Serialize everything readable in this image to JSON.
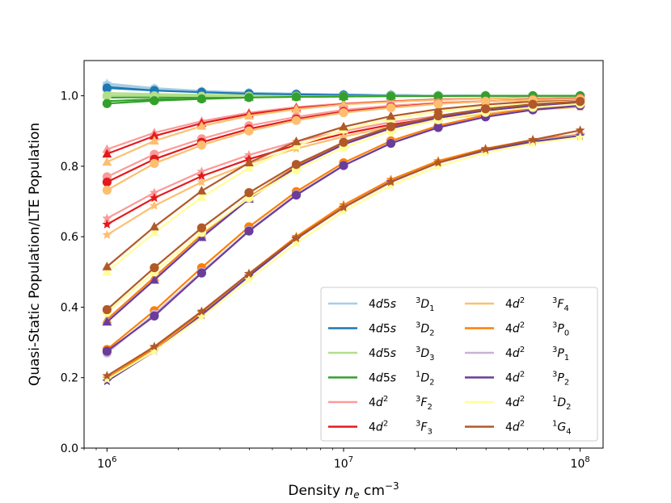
{
  "chart_data": {
    "type": "line",
    "xscale": "log",
    "x": [
      1000000,
      1584893,
      2511886,
      3981072,
      6309573,
      10000000,
      15848932,
      25118864,
      39810717,
      63095734,
      100000000
    ],
    "xlim": [
      800000,
      125000000
    ],
    "ylim": [
      0.0,
      1.1
    ],
    "xticks": [
      {
        "value": 1000000,
        "base": "10",
        "exp": "6"
      },
      {
        "value": 10000000,
        "base": "10",
        "exp": "7"
      },
      {
        "value": 100000000,
        "base": "10",
        "exp": "8"
      }
    ],
    "yticks": [
      {
        "value": 0.0,
        "label": "0.0"
      },
      {
        "value": 0.2,
        "label": "0.2"
      },
      {
        "value": 0.4,
        "label": "0.4"
      },
      {
        "value": 0.6,
        "label": "0.6"
      },
      {
        "value": 0.8,
        "label": "0.8"
      },
      {
        "value": 1.0,
        "label": "1.0"
      }
    ],
    "xlabel": {
      "text": "Density ",
      "var": "n",
      "sub": "e",
      "unit": " cm",
      "sup": "−3"
    },
    "ylabel": "Quasi-Static Population/LTE Population",
    "legend_position": "lower-right",
    "series": [
      {
        "config": "4d5s",
        "term": "D",
        "mult": "3",
        "j": "1",
        "color": "#a6cee3",
        "dots": [
          1.03,
          1.02,
          1.012,
          1.008,
          1.005,
          1.003,
          1.002,
          1.001,
          1.0,
          1.0,
          1.0
        ],
        "stars": [
          1.035,
          1.022,
          1.014,
          1.009,
          1.006,
          1.004,
          1.002,
          1.001,
          1.0,
          1.0,
          1.0
        ],
        "tris": [
          1.03,
          1.02,
          1.012,
          1.008,
          1.005,
          1.003,
          1.002,
          1.001,
          1.0,
          1.0,
          1.0
        ]
      },
      {
        "config": "4d5s",
        "term": "D",
        "mult": "3",
        "j": "2",
        "color": "#1f78b4",
        "dots": [
          1.022,
          1.015,
          1.01,
          1.006,
          1.004,
          1.002,
          1.001,
          1.0,
          1.0,
          1.0,
          1.0
        ],
        "stars": [
          1.028,
          1.018,
          1.012,
          1.008,
          1.005,
          1.003,
          1.002,
          1.001,
          1.0,
          1.0,
          1.0
        ],
        "tris": [
          1.025,
          1.016,
          1.011,
          1.007,
          1.004,
          1.003,
          1.002,
          1.001,
          1.0,
          1.0,
          1.0
        ]
      },
      {
        "config": "4d5s",
        "term": "D",
        "mult": "3",
        "j": "3",
        "color": "#b2df8a",
        "dots": [
          1.0,
          1.0,
          0.999,
          0.999,
          0.999,
          0.999,
          1.0,
          1.0,
          1.0,
          1.0,
          1.0
        ],
        "stars": [
          1.008,
          1.005,
          1.003,
          1.002,
          1.001,
          1.001,
          1.0,
          1.0,
          1.0,
          1.0,
          1.0
        ],
        "tris": [
          1.002,
          1.001,
          1.0,
          1.0,
          1.0,
          1.0,
          1.0,
          1.0,
          1.0,
          1.0,
          1.0
        ]
      },
      {
        "config": "4d5s",
        "term": "D",
        "mult": "1",
        "j": "2",
        "color": "#33a02c",
        "dots": [
          0.978,
          0.986,
          0.991,
          0.995,
          0.997,
          0.998,
          0.999,
          0.999,
          1.0,
          1.0,
          1.0
        ],
        "stars": [
          0.995,
          0.996,
          0.997,
          0.998,
          0.999,
          0.999,
          1.0,
          1.0,
          1.0,
          1.0,
          1.0
        ],
        "tris": [
          0.985,
          0.99,
          0.993,
          0.996,
          0.997,
          0.998,
          0.999,
          1.0,
          1.0,
          1.0,
          1.0
        ]
      },
      {
        "config": "4d",
        "csup": "2",
        "term": "F",
        "mult": "3",
        "j": "2",
        "color": "#fb9a99",
        "dots": [
          0.77,
          0.834,
          0.878,
          0.915,
          0.94,
          0.96,
          0.972,
          0.98,
          0.985,
          0.99,
          0.993
        ],
        "stars": [
          0.652,
          0.725,
          0.785,
          0.832,
          0.87,
          0.9,
          0.925,
          0.943,
          0.956,
          0.965,
          0.972
        ],
        "tris": [
          0.848,
          0.895,
          0.928,
          0.952,
          0.968,
          0.978,
          0.985,
          0.99,
          0.993,
          0.995,
          0.997
        ]
      },
      {
        "config": "4d",
        "csup": "2",
        "term": "F",
        "mult": "3",
        "j": "3",
        "color": "#e31a1c",
        "dots": [
          0.755,
          0.82,
          0.868,
          0.906,
          0.934,
          0.955,
          0.968,
          0.978,
          0.984,
          0.989,
          0.992
        ],
        "stars": [
          0.635,
          0.71,
          0.772,
          0.82,
          0.86,
          0.892,
          0.918,
          0.938,
          0.952,
          0.962,
          0.97
        ],
        "tris": [
          0.835,
          0.886,
          0.922,
          0.948,
          0.965,
          0.976,
          0.984,
          0.989,
          0.992,
          0.995,
          0.997
        ]
      },
      {
        "config": "4d",
        "csup": "2",
        "term": "F",
        "mult": "3",
        "j": "4",
        "color": "#fdbf6f",
        "dots": [
          0.732,
          0.808,
          0.86,
          0.9,
          0.93,
          0.952,
          0.966,
          0.977,
          0.984,
          0.988,
          0.991
        ],
        "stars": [
          0.605,
          0.688,
          0.755,
          0.808,
          0.85,
          0.884,
          0.912,
          0.933,
          0.948,
          0.96,
          0.968
        ],
        "tris": [
          0.812,
          0.872,
          0.914,
          0.943,
          0.962,
          0.975,
          0.983,
          0.988,
          0.992,
          0.995,
          0.997
        ]
      },
      {
        "config": "4d",
        "csup": "2",
        "term": "P",
        "mult": "3",
        "j": "0",
        "color": "#ff7f00",
        "dots": [
          0.28,
          0.39,
          0.512,
          0.628,
          0.728,
          0.81,
          0.872,
          0.915,
          0.945,
          0.962,
          0.975
        ],
        "stars": [
          0.198,
          0.283,
          0.385,
          0.495,
          0.6,
          0.69,
          0.762,
          0.815,
          0.85,
          0.875,
          0.89
        ],
        "tris": [
          0.365,
          0.485,
          0.605,
          0.712,
          0.8,
          0.865,
          0.91,
          0.94,
          0.96,
          0.972,
          0.98
        ]
      },
      {
        "config": "4d",
        "csup": "2",
        "term": "P",
        "mult": "3",
        "j": "1",
        "color": "#cab2d6",
        "dots": [
          0.27,
          0.38,
          0.5,
          0.618,
          0.72,
          0.803,
          0.866,
          0.91,
          0.941,
          0.96,
          0.973
        ],
        "stars": [
          0.19,
          0.276,
          0.378,
          0.488,
          0.594,
          0.684,
          0.757,
          0.81,
          0.846,
          0.872,
          0.888
        ],
        "tris": [
          0.36,
          0.478,
          0.6,
          0.708,
          0.797,
          0.862,
          0.908,
          0.939,
          0.959,
          0.971,
          0.979
        ]
      },
      {
        "config": "4d",
        "csup": "2",
        "term": "P",
        "mult": "3",
        "j": "2",
        "color": "#6a3d9a",
        "dots": [
          0.275,
          0.375,
          0.497,
          0.616,
          0.718,
          0.802,
          0.865,
          0.91,
          0.94,
          0.96,
          0.972
        ],
        "stars": [
          0.19,
          0.275,
          0.378,
          0.488,
          0.594,
          0.683,
          0.756,
          0.81,
          0.845,
          0.87,
          0.886
        ],
        "tris": [
          0.358,
          0.477,
          0.598,
          0.707,
          0.797,
          0.862,
          0.908,
          0.938,
          0.958,
          0.971,
          0.979
        ]
      },
      {
        "config": "4d",
        "csup": "2",
        "term": "D",
        "mult": "1",
        "j": "2",
        "color": "#ffff99",
        "dots": [
          0.385,
          0.5,
          0.612,
          0.71,
          0.79,
          0.853,
          0.9,
          0.932,
          0.953,
          0.967,
          0.977
        ],
        "stars": [
          0.195,
          0.275,
          0.372,
          0.478,
          0.582,
          0.672,
          0.745,
          0.8,
          0.838,
          0.865,
          0.882
        ],
        "tris": [
          0.5,
          0.612,
          0.712,
          0.795,
          0.858,
          0.903,
          0.934,
          0.955,
          0.969,
          0.978,
          0.984
        ]
      },
      {
        "config": "4d",
        "csup": "2",
        "term": "G",
        "mult": "1",
        "j": "4",
        "color": "#b15928",
        "dots": [
          0.393,
          0.512,
          0.625,
          0.725,
          0.805,
          0.868,
          0.912,
          0.943,
          0.963,
          0.976,
          0.984
        ],
        "stars": [
          0.205,
          0.288,
          0.388,
          0.495,
          0.596,
          0.683,
          0.755,
          0.81,
          0.848,
          0.875,
          0.902
        ],
        "tris": [
          0.515,
          0.628,
          0.73,
          0.81,
          0.87,
          0.912,
          0.942,
          0.962,
          0.975,
          0.984,
          0.99
        ]
      }
    ]
  }
}
